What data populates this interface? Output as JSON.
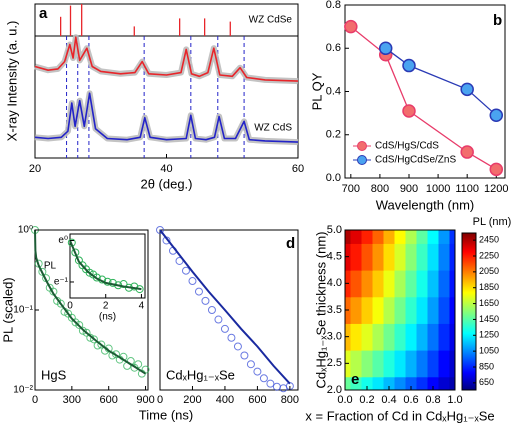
{
  "chart_data": [
    {
      "type": "line",
      "panel_label": "a",
      "xlabel": "2θ (deg.)",
      "ylabel": "X-ray Intensity (a. u.)",
      "xlim": [
        20,
        60
      ],
      "xticks": [
        20,
        40,
        60
      ],
      "ylim": [
        0,
        10
      ],
      "series": [
        {
          "name": "WZ CdSe",
          "color": "#e8252a",
          "x": [
            20,
            22,
            23.5,
            24.5,
            25.3,
            25.8,
            26.2,
            26.8,
            27.9,
            28.7,
            30,
            33,
            35.2,
            36.3,
            37.3,
            40,
            42.2,
            43.0,
            43.8,
            45,
            46.3,
            47.2,
            48.1,
            50,
            51.2,
            52.2,
            55,
            60
          ],
          "values": [
            7.5,
            7.2,
            7.3,
            7.9,
            9.3,
            8.2,
            9.9,
            8.0,
            9.0,
            7.5,
            7.1,
            6.9,
            7.0,
            7.9,
            6.9,
            6.8,
            7.0,
            8.9,
            6.9,
            6.7,
            7.0,
            9.0,
            6.8,
            6.7,
            7.4,
            6.6,
            6.4,
            6.3
          ]
        },
        {
          "name": "WZ CdS",
          "color": "#2323c8",
          "x": [
            20,
            22,
            24,
            25,
            25.6,
            26.1,
            26.8,
            27.5,
            28.3,
            29.2,
            31,
            34,
            36,
            36.7,
            37.5,
            40,
            43,
            43.7,
            44.4,
            46,
            47.3,
            48,
            48.8,
            50.5,
            51.8,
            52.6,
            55,
            60
          ],
          "values": [
            1.7,
            1.6,
            1.7,
            2.2,
            4.5,
            2.6,
            4.7,
            2.6,
            5.3,
            2.4,
            1.6,
            1.5,
            1.7,
            3.3,
            1.7,
            1.5,
            1.6,
            3.5,
            1.6,
            1.5,
            1.7,
            3.4,
            1.6,
            1.6,
            3.0,
            1.5,
            1.4,
            1.3
          ]
        }
      ],
      "reference_sticks": {
        "color": "#e8252a",
        "x": [
          23.9,
          25.4,
          27.1,
          35.1,
          42.0,
          45.8,
          49.7
        ],
        "values": [
          0.6,
          0.95,
          1.0,
          0.3,
          0.55,
          0.55,
          0.45
        ]
      },
      "reference_lines": {
        "color": "#2323c8",
        "x": [
          24.8,
          26.5,
          28.2,
          36.6,
          43.7,
          47.8,
          51.8
        ]
      }
    },
    {
      "type": "line",
      "panel_label": "b",
      "xlabel": "Wavelength (nm)",
      "ylabel": "PL QY",
      "xlim": [
        680,
        1230
      ],
      "xticks": [
        700,
        800,
        900,
        1000,
        1100,
        1200
      ],
      "ylim": [
        0,
        0.8
      ],
      "yticks": [
        {
          "value": 0,
          "label": "0.0"
        },
        0.2,
        0.4,
        0.6,
        0.8
      ],
      "legend": "lower left",
      "series": [
        {
          "name": "CdS/HgS/CdS",
          "color": "#e83c6a",
          "marker_color": "#f26d6d",
          "x": [
            700,
            820,
            900,
            1100,
            1200
          ],
          "values": [
            0.7,
            0.57,
            0.31,
            0.12,
            0.04
          ]
        },
        {
          "name": "CdS/HgCdSe/ZnS",
          "color": "#2a3ab5",
          "marker_color": "#4aa3f0",
          "x": [
            820,
            900,
            1100,
            1200
          ],
          "values": [
            0.6,
            0.52,
            0.41,
            0.29
          ]
        }
      ]
    },
    {
      "type": "scatter",
      "panel_label": "c",
      "label": "HgS",
      "xlabel": "Time (ns)",
      "ylabel": "PL (scaled)",
      "xlim": [
        0,
        920
      ],
      "xticks": [
        0,
        300,
        600,
        900
      ],
      "log": true,
      "ylim": [
        0.01,
        1
      ],
      "yticks": [
        {
          "value": 0.01,
          "label": "10⁻²"
        },
        {
          "value": 0.1,
          "label": "10⁻¹"
        },
        {
          "value": 1,
          "label": "10⁰"
        }
      ],
      "color": "#2fb35a",
      "fit_color": "#1c5c35",
      "x": [
        0,
        30,
        60,
        90,
        120,
        150,
        180,
        210,
        240,
        270,
        300,
        330,
        360,
        390,
        420,
        450,
        480,
        510,
        540,
        570,
        600,
        630,
        660,
        690,
        720,
        750,
        780,
        810,
        840,
        870,
        900
      ],
      "values": [
        1.0,
        0.38,
        0.3,
        0.25,
        0.19,
        0.17,
        0.13,
        0.12,
        0.095,
        0.09,
        0.08,
        0.07,
        0.065,
        0.055,
        0.052,
        0.045,
        0.043,
        0.036,
        0.037,
        0.031,
        0.033,
        0.027,
        0.028,
        0.024,
        0.026,
        0.02,
        0.023,
        0.019,
        0.021,
        0.016,
        0.018
      ],
      "fit": {
        "x": [
          0,
          3,
          10,
          30,
          60,
          100,
          150,
          200,
          300,
          400,
          500,
          600,
          700,
          800,
          900
        ],
        "values": [
          1,
          0.55,
          0.45,
          0.36,
          0.29,
          0.22,
          0.16,
          0.125,
          0.078,
          0.055,
          0.041,
          0.031,
          0.025,
          0.02,
          0.016
        ]
      },
      "inset": {
        "xlabel": "(ns)",
        "ylabel": "PL",
        "xlim": [
          0,
          4.2
        ],
        "xticks": [
          0,
          2,
          4
        ],
        "log": true,
        "ylim": [
          0.25,
          1.17
        ],
        "yticks": [
          {
            "value": 1,
            "label": "e⁰"
          },
          {
            "value": 0.3679,
            "label": "e⁻¹"
          }
        ],
        "x": [
          0.1,
          0.3,
          0.5,
          0.7,
          0.9,
          1.1,
          1.3,
          1.5,
          1.8,
          2.1,
          2.4,
          2.7,
          3.0,
          3.3,
          3.6,
          3.9
        ],
        "values": [
          0.95,
          0.75,
          0.62,
          0.55,
          0.5,
          0.46,
          0.44,
          0.41,
          0.39,
          0.37,
          0.36,
          0.34,
          0.35,
          0.32,
          0.33,
          0.31
        ],
        "fit": {
          "x": [
            0,
            0.5,
            1,
            1.5,
            2,
            3,
            4
          ],
          "values": [
            1.0,
            0.6,
            0.47,
            0.4,
            0.36,
            0.33,
            0.31
          ]
        }
      }
    },
    {
      "type": "scatter",
      "panel_label": "d",
      "label": "CdₓHg₁₋ₓSe",
      "xlim": [
        0,
        850
      ],
      "xticks": [
        0,
        200,
        400,
        600,
        800
      ],
      "log": true,
      "ylim": [
        0.01,
        1
      ],
      "color": "#3a4fd8",
      "fit_color": "#1a2aa0",
      "x": [
        0,
        40,
        80,
        120,
        160,
        200,
        240,
        280,
        320,
        360,
        400,
        440,
        480,
        520,
        560,
        600,
        640,
        680,
        720,
        760,
        800
      ],
      "values": [
        1.0,
        0.74,
        0.55,
        0.41,
        0.31,
        0.23,
        0.17,
        0.13,
        0.1,
        0.076,
        0.058,
        0.045,
        0.035,
        0.027,
        0.021,
        0.017,
        0.014,
        0.012,
        0.011,
        0.0105,
        0.0112
      ],
      "fit": {
        "x": [
          0,
          100,
          200,
          300,
          400,
          500,
          600,
          700,
          800
        ],
        "values": [
          1,
          0.55,
          0.3,
          0.17,
          0.1,
          0.058,
          0.035,
          0.02,
          0.012
        ]
      }
    },
    {
      "type": "heatmap",
      "panel_label": "e",
      "xlabel": "x = Fraction of Cd in CdₓHg₁₋ₓSe",
      "ylabel": "CdₓHg₁₋ₓSe thickness (nm)",
      "xlim": [
        0,
        1
      ],
      "xticks": [
        {
          "value": 0,
          "label": "0.0"
        },
        0.2,
        0.4,
        0.6,
        0.8,
        {
          "value": 1,
          "label": "1.0"
        }
      ],
      "ylim": [
        2,
        5
      ],
      "yticks": [
        {
          "value": 2,
          "label": "2.0"
        },
        2.5,
        {
          "value": 3,
          "label": "3.0"
        },
        3.5,
        {
          "value": 4,
          "label": "4.0"
        },
        4.5,
        {
          "value": 5,
          "label": "5.0"
        }
      ],
      "colormap": "jet",
      "x": [
        0,
        0.1,
        0.2,
        0.3,
        0.4,
        0.5,
        0.6,
        0.7,
        0.8,
        0.9,
        1.0
      ],
      "y": [
        2.0,
        2.5,
        3.0,
        3.5,
        4.0,
        4.5,
        5.0
      ],
      "z": [
        [
          1500,
          1420,
          1340,
          1260,
          1170,
          1080,
          990,
          900,
          810,
          720,
          650
        ],
        [
          1738,
          1653,
          1563,
          1470,
          1365,
          1260,
          1153,
          1045,
          933,
          815,
          713
        ],
        [
          1928,
          1839,
          1741,
          1638,
          1521,
          1404,
          1283,
          1161,
          1031,
          891,
          763
        ],
        [
          2089,
          1997,
          1892,
          1781,
          1654,
          1526,
          1393,
          1260,
          1114,
          956,
          805
        ],
        [
          2222,
          2127,
          2016,
          1898,
          1763,
          1627,
          1484,
          1341,
          1182,
          1009,
          840
        ],
        [
          2346,
          2248,
          2132,
          2008,
          1864,
          1721,
          1569,
          1416,
          1246,
          1058,
          873
        ],
        [
          2450,
          2350,
          2230,
          2100,
          1950,
          1800,
          1640,
          1480,
          1300,
          1100,
          900
        ]
      ],
      "colorbar": {
        "label": "PL (nm)",
        "zlim": [
          560,
          2540
        ],
        "ticks": [
          650,
          850,
          1050,
          1250,
          1450,
          1650,
          1850,
          2050,
          2250,
          2450
        ]
      }
    }
  ]
}
